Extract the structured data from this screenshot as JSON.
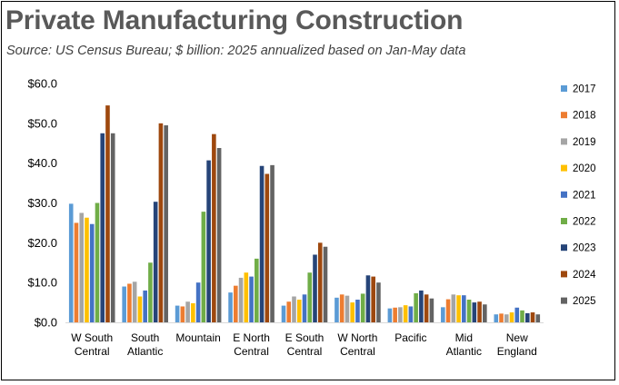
{
  "chart_data": {
    "type": "bar",
    "title": "Private Manufacturing Construction",
    "subtitle": "Source:  US Census Bureau; $ billion: 2025 annualized based on Jan-May data",
    "xlabel": "",
    "ylabel": "",
    "ylim": [
      0,
      60
    ],
    "yticks": [
      "$0.0",
      "$10.0",
      "$20.0",
      "$30.0",
      "$40.0",
      "$50.0",
      "$60.0"
    ],
    "ytick_values": [
      0,
      10,
      20,
      30,
      40,
      50,
      60
    ],
    "grid": false,
    "legend_position": "right",
    "categories": [
      [
        "W South",
        "Central"
      ],
      [
        "South",
        "Atlantic"
      ],
      [
        "Mountain"
      ],
      [
        "E North",
        "Central"
      ],
      [
        "E South",
        "Central"
      ],
      [
        "W North",
        "Central"
      ],
      [
        "Pacific"
      ],
      [
        "Mid",
        "Atlantic"
      ],
      [
        "New",
        "England"
      ]
    ],
    "series": [
      {
        "name": "2017",
        "color": "#5b9bd5",
        "values": [
          29.8,
          9.0,
          4.2,
          7.5,
          4.2,
          6.2,
          3.5,
          3.8,
          2.0
        ]
      },
      {
        "name": "2018",
        "color": "#ed7d31",
        "values": [
          25.0,
          9.7,
          4.0,
          9.2,
          5.2,
          7.0,
          3.7,
          5.8,
          2.2
        ]
      },
      {
        "name": "2019",
        "color": "#a5a5a5",
        "values": [
          27.5,
          10.2,
          5.2,
          11.2,
          6.5,
          6.7,
          3.8,
          7.0,
          2.0
        ]
      },
      {
        "name": "2020",
        "color": "#ffc000",
        "values": [
          26.3,
          6.5,
          4.8,
          12.5,
          5.7,
          5.0,
          4.3,
          6.8,
          2.5
        ]
      },
      {
        "name": "2021",
        "color": "#4472c4",
        "values": [
          24.7,
          8.0,
          10.0,
          11.5,
          7.0,
          5.7,
          4.0,
          6.8,
          3.7
        ]
      },
      {
        "name": "2022",
        "color": "#70ad47",
        "values": [
          30.0,
          15.0,
          27.8,
          16.0,
          12.5,
          7.2,
          7.3,
          5.7,
          3.0
        ]
      },
      {
        "name": "2023",
        "color": "#264478",
        "values": [
          47.5,
          30.3,
          40.7,
          39.3,
          17.0,
          11.8,
          8.0,
          5.0,
          2.3
        ]
      },
      {
        "name": "2024",
        "color": "#9e480e",
        "values": [
          54.5,
          50.0,
          47.3,
          37.3,
          20.0,
          11.5,
          7.0,
          5.2,
          2.5
        ]
      },
      {
        "name": "2025",
        "color": "#636363",
        "values": [
          47.5,
          49.5,
          43.8,
          39.5,
          19.0,
          10.0,
          6.0,
          4.5,
          2.0
        ]
      }
    ]
  }
}
